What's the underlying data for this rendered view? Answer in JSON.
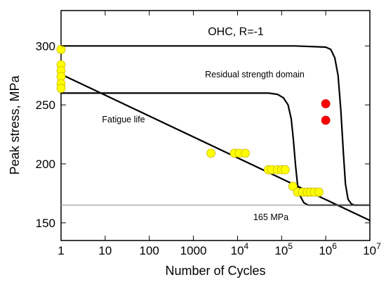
{
  "chart_data": {
    "type": "scatter",
    "title": "OHC, R=-1",
    "xlabel": "Number of Cycles",
    "ylabel": "Peak stress, MPa",
    "xscale": "log",
    "xlim": [
      1,
      10000000
    ],
    "ylim": [
      135,
      330
    ],
    "yticks": [
      150,
      200,
      250,
      300
    ],
    "xticks": [
      {
        "value": 1,
        "label": "1",
        "base": "",
        "exp": ""
      },
      {
        "value": 10,
        "label": "10",
        "base": "",
        "exp": ""
      },
      {
        "value": 100,
        "label": "100",
        "base": "",
        "exp": ""
      },
      {
        "value": 1000,
        "label": "1000",
        "base": "",
        "exp": ""
      },
      {
        "value": 10000,
        "label": "",
        "base": "10",
        "exp": "4"
      },
      {
        "value": 100000,
        "label": "",
        "base": "10",
        "exp": "5"
      },
      {
        "value": 1000000,
        "label": "",
        "base": "10",
        "exp": "6"
      },
      {
        "value": 10000000,
        "label": "",
        "base": "10",
        "exp": "7"
      }
    ],
    "grid": false,
    "annotations": {
      "residual": "Residual strength domain",
      "fatigue": "Fatigue life",
      "threshold": "165 MPa"
    },
    "lines": [
      {
        "name": "",
        "color": "#000000",
        "width": 2.2,
        "points": [
          [
            1,
            276
          ],
          [
            10000000,
            152
          ]
        ]
      },
      {
        "name": "",
        "color": "#000000",
        "width": 2.2,
        "points": [
          [
            1,
            300
          ],
          [
            200000,
            300
          ],
          [
            1000000,
            299
          ],
          [
            1300000,
            297
          ],
          [
            1600000,
            290
          ],
          [
            1900000,
            275
          ],
          [
            2200000,
            245
          ],
          [
            2500000,
            210
          ],
          [
            2800000,
            183
          ],
          [
            3200000,
            170
          ],
          [
            3800000,
            166
          ],
          [
            4500000,
            165
          ],
          [
            10000000,
            165
          ]
        ]
      },
      {
        "name": "",
        "color": "#000000",
        "width": 2.2,
        "points": [
          [
            1,
            260
          ],
          [
            50000,
            260
          ],
          [
            80000,
            259
          ],
          [
            110000,
            256
          ],
          [
            140000,
            250
          ],
          [
            165000,
            238
          ],
          [
            185000,
            220
          ],
          [
            205000,
            200
          ],
          [
            230000,
            182
          ],
          [
            270000,
            172
          ],
          [
            320000,
            167
          ],
          [
            400000,
            165
          ],
          [
            10000000,
            165
          ]
        ]
      },
      {
        "name": "",
        "color": "#888888",
        "width": 1,
        "points": [
          [
            1,
            165
          ],
          [
            10000000,
            165
          ]
        ]
      }
    ],
    "series": [
      {
        "name": "",
        "color": "#ffff00",
        "stroke": "#c8b400",
        "points": [
          [
            1,
            297
          ],
          [
            1,
            284
          ],
          [
            1,
            279
          ],
          [
            1,
            274
          ],
          [
            1,
            268
          ],
          [
            1,
            264
          ],
          [
            2500,
            209
          ],
          [
            8500,
            209
          ],
          [
            11000,
            209
          ],
          [
            15000,
            209
          ],
          [
            50000,
            195
          ],
          [
            60000,
            195
          ],
          [
            80000,
            195
          ],
          [
            100000,
            195
          ],
          [
            120000,
            195
          ],
          [
            180000,
            181
          ],
          [
            230000,
            176
          ],
          [
            300000,
            176
          ],
          [
            380000,
            176
          ],
          [
            450000,
            176
          ],
          [
            550000,
            176
          ],
          [
            700000,
            176
          ]
        ]
      },
      {
        "name": "",
        "color": "#ff0000",
        "stroke": "#cc0000",
        "points": [
          [
            1000000,
            251
          ],
          [
            1000000,
            237
          ]
        ]
      }
    ]
  }
}
